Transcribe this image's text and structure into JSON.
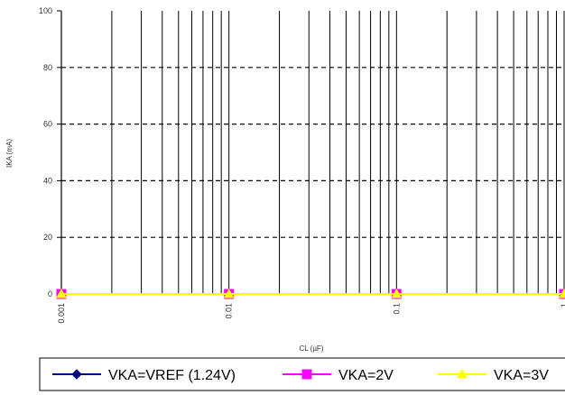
{
  "chart_data": {
    "type": "line",
    "title": "",
    "xlabel": "CL (µF)",
    "ylabel": "IKA (mA)",
    "x_scale": "log",
    "xlim": [
      0.001,
      1
    ],
    "ylim": [
      0,
      100
    ],
    "x_ticks": [
      0.001,
      0.01,
      0.1,
      1
    ],
    "x_tick_labels": [
      "0.001",
      "0.01",
      "0.1",
      "1"
    ],
    "y_ticks": [
      0,
      20,
      40,
      60,
      80,
      100
    ],
    "y_tick_labels": [
      "0",
      "20",
      "40",
      "60",
      "80",
      "100"
    ],
    "grid": {
      "x_minor_vertical": true,
      "y_dashed": true
    },
    "legend": {
      "placement": "bottom"
    },
    "series": [
      {
        "name": "VKA=VREF (1.24V)",
        "color": "#000080",
        "marker": "diamond",
        "x": [
          0.001,
          0.01,
          0.1,
          1
        ],
        "values": [
          0,
          0,
          0,
          0
        ]
      },
      {
        "name": "VKA=2V",
        "color": "#FF00FF",
        "marker": "square",
        "x": [
          0.001,
          0.01,
          0.1,
          1
        ],
        "values": [
          0,
          0,
          0,
          0
        ]
      },
      {
        "name": "VKA=3V",
        "color": "#FFFF00",
        "marker": "triangle",
        "x": [
          0.001,
          0.01,
          0.1,
          1
        ],
        "values": [
          0,
          0,
          0,
          0
        ]
      }
    ]
  }
}
